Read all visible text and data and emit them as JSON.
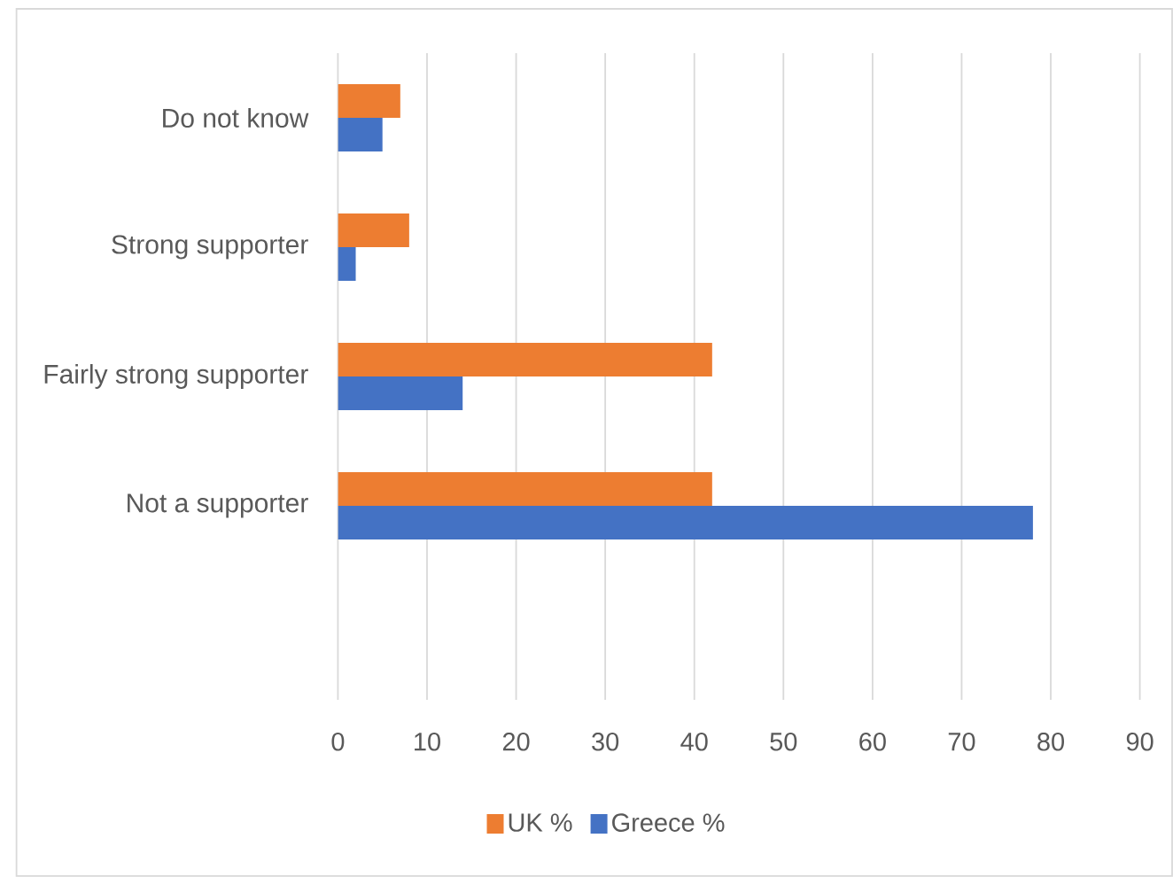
{
  "chart_data": {
    "type": "bar",
    "orientation": "horizontal",
    "categories": [
      "Do not know",
      "Strong supporter",
      "Fairly strong supporter",
      "Not a supporter"
    ],
    "series": [
      {
        "name": "UK %",
        "color": "#ed7d31",
        "values": [
          7,
          8,
          42,
          42
        ]
      },
      {
        "name": "Greece %",
        "color": "#4472c4",
        "values": [
          5,
          2,
          14,
          78
        ]
      }
    ],
    "xlim": [
      0,
      90
    ],
    "xticks": [
      0,
      10,
      20,
      30,
      40,
      50,
      60,
      70,
      80,
      90
    ],
    "grid": "x",
    "legend": "bottom"
  }
}
